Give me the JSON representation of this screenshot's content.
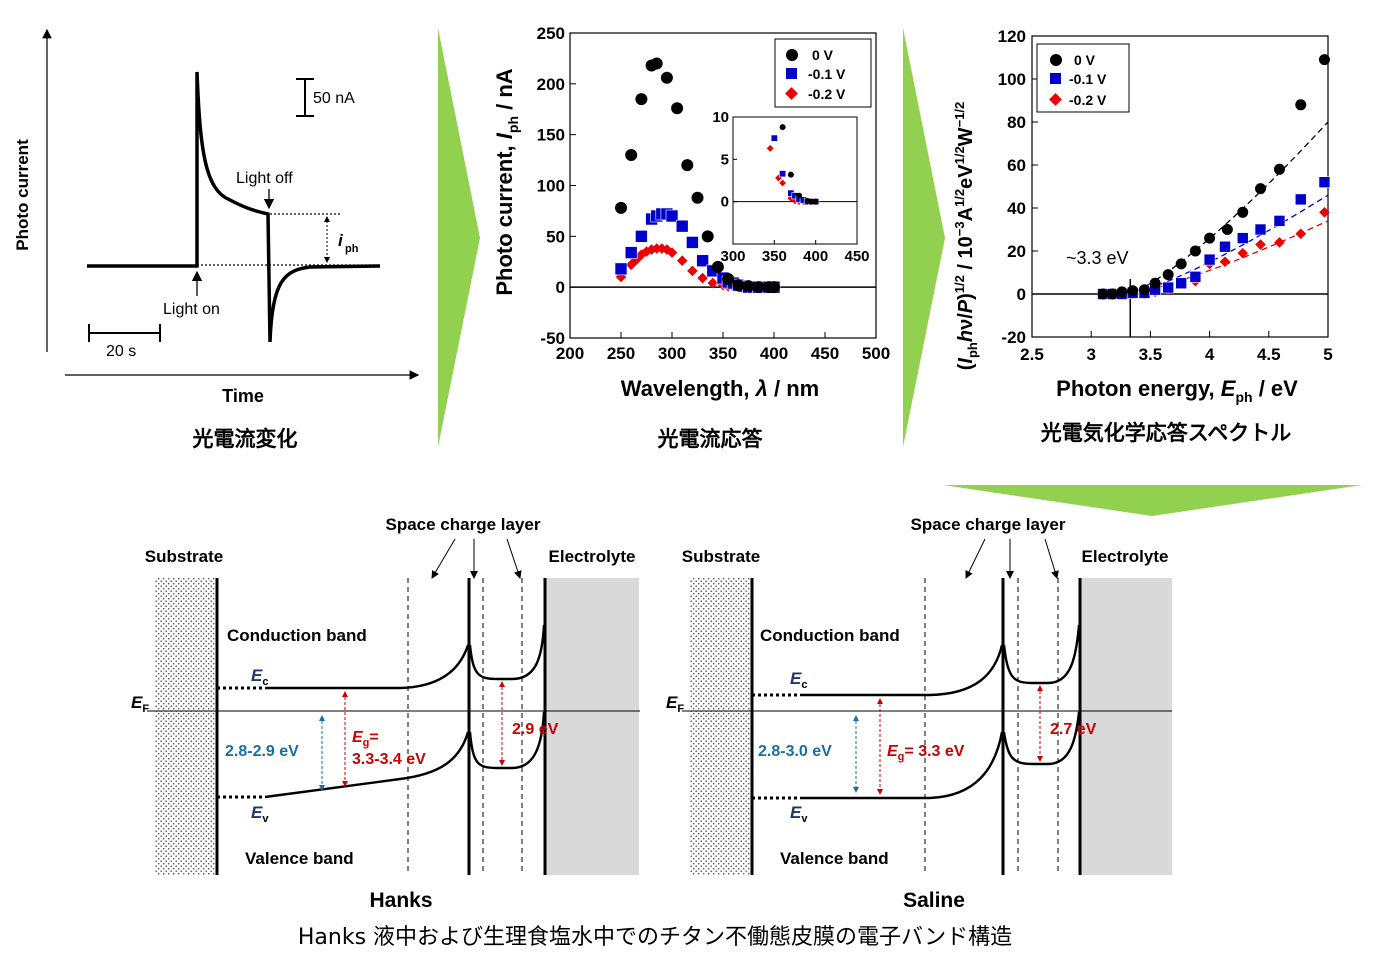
{
  "colors": {
    "arrow_green": "#92d050",
    "series_0V": "#000000",
    "series_m01V": "#0000cc",
    "series_m02V": "#ee0000",
    "blue_text": "#1a6fa0",
    "red_text": "#cc0000",
    "electrolyte_fill": "#d9d9d9"
  },
  "panel1": {
    "ylabel": "Photo current",
    "xlabel": "Time",
    "scale_current": "50 nA",
    "scale_time": "20 s",
    "light_off": "Light off",
    "light_on": "Light on",
    "iph": "i",
    "iph_sub": "ph",
    "caption": "光電流変化"
  },
  "panel2": {
    "caption": "光電流応答"
  },
  "panel3": {
    "annotation": "~3.3 eV",
    "caption": "光電気化学応答スペクトル"
  },
  "chart_data": [
    {
      "type": "scatter",
      "xlabel_main": "Wavelength, ",
      "xlabel_sym": "λ",
      "xlabel_unit": " / nm",
      "ylabel_main": "Photo current, ",
      "ylabel_sym": "I",
      "ylabel_sub": "ph",
      "ylabel_unit": " / nA",
      "xlim": [
        200,
        500
      ],
      "ylim": [
        -50,
        250
      ],
      "xticks": [
        "200",
        "250",
        "300",
        "350",
        "400",
        "450",
        "500"
      ],
      "yticks": [
        "-50",
        "0",
        "50",
        "100",
        "150",
        "200",
        "250"
      ],
      "legend_position": "top-right",
      "series": [
        {
          "name": "0 V",
          "marker": "circle",
          "x": [
            250,
            255,
            260,
            265,
            270,
            275,
            280,
            285,
            290,
            295,
            300,
            305,
            310,
            315,
            320,
            325,
            330,
            335,
            340,
            345,
            350,
            355,
            360,
            365,
            370,
            375,
            380,
            385,
            390,
            395,
            400
          ],
          "y": [
            78,
            null,
            130,
            null,
            185,
            null,
            218,
            220,
            null,
            206,
            null,
            176,
            null,
            120,
            null,
            88,
            null,
            50,
            null,
            20,
            null,
            8,
            null,
            2,
            null,
            1,
            null,
            0,
            null,
            0,
            0
          ]
        },
        {
          "name": "-0.1 V",
          "marker": "square",
          "x": [
            250,
            260,
            270,
            280,
            285,
            290,
            295,
            300,
            310,
            320,
            330,
            340,
            350,
            355,
            360,
            365,
            370,
            375,
            380,
            385,
            390,
            395,
            400
          ],
          "y": [
            18,
            34,
            50,
            67,
            70,
            72,
            72,
            70,
            60,
            44,
            26,
            16,
            9,
            5,
            4,
            2,
            1,
            0,
            0,
            0,
            0,
            0,
            0
          ]
        },
        {
          "name": "-0.2 V",
          "marker": "diamond",
          "x": [
            250,
            260,
            265,
            270,
            275,
            280,
            285,
            290,
            295,
            300,
            310,
            320,
            330,
            340,
            350,
            355,
            360,
            365,
            370,
            375,
            380,
            385,
            390,
            395,
            400
          ],
          "y": [
            10,
            22,
            27,
            32,
            35,
            37,
            38,
            38,
            37,
            34,
            26,
            16,
            9,
            4,
            2,
            1,
            1,
            0,
            0,
            0,
            0,
            0,
            0,
            0,
            0
          ]
        }
      ],
      "inset": {
        "xlim": [
          300,
          450
        ],
        "ylim": [
          -5,
          10
        ],
        "xticks": [
          "300",
          "350",
          "400",
          "450"
        ],
        "yticks": [
          "0",
          "5",
          "10"
        ],
        "series": [
          {
            "name": "0 V",
            "x": [
              360,
              370,
              380,
              390,
              395,
              400
            ],
            "y": [
              8.8,
              3.2,
              0.7,
              0.1,
              0,
              0
            ]
          },
          {
            "name": "-0.1 V",
            "x": [
              350,
              360,
              370,
              375,
              380,
              385,
              390,
              395,
              400
            ],
            "y": [
              7.5,
              3.3,
              1.0,
              0.7,
              0.3,
              0.2,
              0,
              0,
              0
            ]
          },
          {
            "name": "-0.2 V",
            "x": [
              345,
              355,
              360,
              370,
              375,
              380,
              385,
              390,
              395,
              400
            ],
            "y": [
              6.3,
              2.8,
              2.2,
              0.4,
              0.1,
              0,
              0,
              0,
              0,
              0
            ]
          }
        ]
      }
    },
    {
      "type": "scatter",
      "xlabel_main": "Photon energy, ",
      "xlabel_sym": "E",
      "xlabel_sub": "ph",
      "xlabel_unit": " / eV",
      "ylabel_text": "(Iphhν/P)1/2 / 10−3A1/2eV1/2W−1/2",
      "xlim": [
        2.5,
        5
      ],
      "ylim": [
        -20,
        120
      ],
      "xticks": [
        "2.5",
        "3",
        "3.5",
        "4",
        "4.5",
        "5"
      ],
      "yticks": [
        "-20",
        "0",
        "20",
        "40",
        "60",
        "80",
        "100",
        "120"
      ],
      "legend_position": "top-left",
      "series": [
        {
          "name": "0 V",
          "x": [
            3.1,
            3.18,
            3.26,
            3.35,
            3.45,
            3.54,
            3.65,
            3.76,
            3.88,
            4.0,
            4.15,
            4.28,
            4.43,
            4.59,
            4.77,
            4.97
          ],
          "y": [
            0,
            0,
            1,
            1.5,
            2,
            5,
            9,
            14,
            20,
            26,
            30,
            38,
            49,
            58,
            88,
            109
          ]
        },
        {
          "name": "-0.1 V",
          "x": [
            3.1,
            3.18,
            3.26,
            3.35,
            3.45,
            3.54,
            3.65,
            3.76,
            3.88,
            4.0,
            4.13,
            4.28,
            4.43,
            4.59,
            4.77,
            4.97
          ],
          "y": [
            0,
            0,
            0,
            0.5,
            0.5,
            2,
            3,
            5,
            8,
            16,
            22,
            26,
            30,
            34,
            44,
            52
          ]
        },
        {
          "name": "-0.2 V",
          "x": [
            3.1,
            3.18,
            3.26,
            3.35,
            3.45,
            3.54,
            3.65,
            3.76,
            3.88,
            4.0,
            4.13,
            4.28,
            4.43,
            4.59,
            4.77,
            4.97
          ],
          "y": [
            0,
            0,
            0,
            0,
            0,
            1,
            2,
            5,
            6,
            14,
            15,
            19,
            23,
            24,
            28,
            38
          ]
        }
      ],
      "fit_lines": [
        {
          "series": "0 V",
          "x": [
            3.32,
            5.0
          ],
          "y": [
            0,
            80
          ]
        },
        {
          "series": "-0.1 V",
          "x": [
            3.32,
            5.0
          ],
          "y": [
            0,
            46
          ]
        },
        {
          "series": "-0.2 V",
          "x": [
            3.32,
            5.0
          ],
          "y": [
            0,
            34
          ]
        }
      ],
      "vline": 3.33
    }
  ],
  "band_diagram": {
    "space_charge_layer": "Space charge layer",
    "substrate": "Substrate",
    "electrolyte": "Electrolyte",
    "conduction_band": "Conduction band",
    "valence_band": "Valence band",
    "ec": "E",
    "ec_sub": "c",
    "ev": "E",
    "ev_sub": "v",
    "ef": "E",
    "ef_sub": "F",
    "eg": "E",
    "eg_sub": "g",
    "hanks": {
      "title": "Hanks",
      "gap_blue": "2.8-2.9 eV",
      "gap_red_eq": "=",
      "gap_red_val": "3.3-3.4 eV",
      "gap_right": "2.9 eV"
    },
    "saline": {
      "title": "Saline",
      "gap_blue": "2.8-3.0 eV",
      "gap_red_val": "= 3.3 eV",
      "gap_right": "2.7 eV"
    },
    "caption": "Hanks 液中および生理食塩水中でのチタン不働態皮膜の電子バンド構造"
  }
}
